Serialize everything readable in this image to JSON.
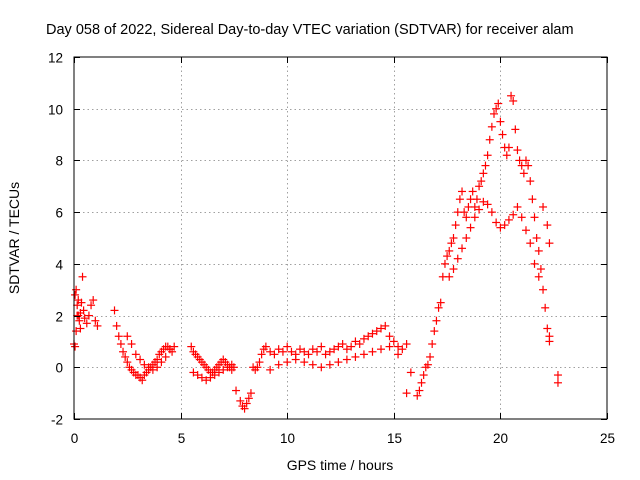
{
  "chart_data": {
    "type": "scatter",
    "title": "Day 058 of 2022, Sidereal Day-to-day VTEC variation (SDTVAR) for receiver alam",
    "xlabel": "GPS time / hours",
    "ylabel": "SDTVAR / TECUs",
    "xlim": [
      0,
      25
    ],
    "ylim": [
      -2,
      12
    ],
    "xticks": [
      0,
      5,
      10,
      15,
      20,
      25
    ],
    "xtick_labels": [
      "0",
      "5",
      "10",
      "15",
      "20",
      "25"
    ],
    "yticks": [
      -2,
      0,
      2,
      4,
      6,
      8,
      10,
      12
    ],
    "ytick_labels": [
      "-2",
      "0",
      "2",
      "4",
      "6",
      "8",
      "10",
      "12"
    ],
    "grid": true,
    "marker": "plus",
    "series": [
      {
        "name": "SDTVAR",
        "color": "#ff0000",
        "x": [
          0.0,
          0.05,
          0.1,
          0.15,
          0.2,
          0.25,
          0.3,
          0.35,
          0.4,
          0.45,
          0.5,
          0.6,
          0.7,
          0.8,
          0.9,
          1.0,
          1.1,
          0.05,
          0.1,
          0.15,
          0.2,
          0.3,
          1.9,
          2.0,
          2.1,
          2.2,
          2.3,
          2.4,
          2.5,
          2.6,
          2.7,
          2.8,
          2.9,
          3.0,
          3.1,
          3.2,
          3.3,
          3.4,
          3.5,
          3.6,
          3.7,
          3.8,
          3.9,
          4.0,
          4.1,
          4.2,
          4.3,
          4.4,
          4.5,
          4.6,
          4.7,
          2.5,
          2.7,
          2.9,
          3.1,
          3.3,
          3.5,
          3.7,
          3.9,
          4.1,
          4.3,
          4.5,
          5.5,
          5.6,
          5.7,
          5.8,
          5.9,
          6.0,
          6.1,
          6.2,
          6.3,
          6.4,
          6.5,
          6.6,
          6.7,
          6.8,
          6.9,
          7.0,
          7.1,
          7.2,
          7.3,
          7.4,
          7.5,
          5.6,
          5.8,
          6.0,
          6.2,
          6.4,
          6.6,
          6.8,
          7.0,
          7.2,
          7.4,
          7.6,
          7.8,
          7.9,
          8.0,
          8.1,
          8.2,
          8.3,
          8.4,
          8.5,
          8.6,
          8.7,
          8.8,
          8.9,
          9.0,
          9.2,
          9.4,
          9.6,
          9.8,
          10.0,
          10.2,
          10.4,
          10.6,
          10.8,
          11.0,
          11.2,
          11.4,
          11.6,
          11.8,
          12.0,
          12.2,
          12.4,
          12.6,
          12.8,
          13.0,
          13.2,
          13.4,
          13.6,
          13.8,
          14.0,
          14.2,
          14.4,
          14.6,
          14.8,
          15.0,
          15.2,
          15.4,
          15.6,
          15.8,
          9.2,
          9.6,
          10.0,
          10.4,
          10.8,
          11.2,
          11.6,
          12.0,
          12.4,
          12.8,
          13.2,
          13.6,
          14.0,
          14.4,
          14.8,
          15.2,
          15.6,
          16.1,
          16.2,
          16.3,
          16.4,
          16.5,
          16.6,
          16.7,
          16.8,
          16.9,
          17.0,
          17.1,
          17.2,
          17.3,
          17.4,
          17.5,
          17.6,
          17.7,
          17.8,
          17.9,
          18.0,
          18.1,
          18.2,
          18.3,
          18.4,
          18.5,
          18.6,
          18.7,
          18.8,
          18.9,
          19.0,
          19.1,
          19.2,
          19.3,
          19.4,
          19.5,
          19.6,
          19.7,
          19.8,
          19.9,
          20.0,
          20.1,
          20.2,
          20.3,
          20.4,
          20.5,
          20.6,
          20.7,
          20.8,
          20.9,
          21.0,
          21.1,
          21.2,
          21.3,
          21.4,
          21.5,
          21.6,
          21.7,
          21.8,
          21.9,
          22.0,
          22.1,
          22.2,
          22.3,
          17.6,
          17.8,
          18.0,
          18.2,
          18.4,
          18.6,
          18.8,
          19.0,
          19.2,
          19.4,
          19.6,
          19.8,
          20.0,
          20.2,
          20.4,
          20.6,
          20.8,
          21.0,
          21.2,
          21.4,
          21.6,
          21.8,
          22.0,
          22.2,
          22.3,
          22.3,
          22.7,
          22.7
        ],
        "y": [
          0.9,
          2.8,
          3.0,
          2.4,
          2.0,
          1.8,
          2.1,
          2.5,
          3.5,
          2.2,
          1.9,
          1.7,
          2.0,
          2.4,
          2.6,
          1.8,
          1.6,
          0.8,
          1.4,
          2.0,
          2.6,
          1.5,
          2.2,
          1.6,
          1.2,
          0.9,
          0.6,
          0.4,
          0.2,
          0.0,
          -0.1,
          -0.2,
          -0.3,
          -0.3,
          -0.4,
          -0.5,
          -0.3,
          -0.2,
          -0.1,
          0.0,
          0.1,
          0.2,
          0.3,
          0.5,
          0.6,
          0.7,
          0.8,
          0.8,
          0.7,
          0.6,
          0.8,
          1.2,
          0.9,
          0.5,
          0.3,
          0.1,
          0.0,
          -0.1,
          0.0,
          0.2,
          0.4,
          0.7,
          0.8,
          0.6,
          0.5,
          0.4,
          0.3,
          0.2,
          0.1,
          0.0,
          -0.1,
          -0.2,
          -0.2,
          -0.1,
          0.0,
          0.1,
          0.2,
          0.3,
          0.2,
          0.1,
          0.0,
          -0.1,
          0.0,
          -0.2,
          -0.3,
          -0.4,
          -0.5,
          -0.4,
          -0.3,
          -0.2,
          -0.1,
          0.0,
          0.1,
          -0.9,
          -1.3,
          -1.5,
          -1.6,
          -1.4,
          -1.2,
          -1.0,
          0.0,
          -0.1,
          0.0,
          0.2,
          0.5,
          0.7,
          0.8,
          0.6,
          0.5,
          0.7,
          0.6,
          0.8,
          0.6,
          0.5,
          0.7,
          0.6,
          0.5,
          0.7,
          0.6,
          0.8,
          0.5,
          0.6,
          0.7,
          0.8,
          0.9,
          0.7,
          0.8,
          1.0,
          0.9,
          1.1,
          1.2,
          1.3,
          1.4,
          1.5,
          1.6,
          1.2,
          1.0,
          0.8,
          0.7,
          0.9,
          -0.2,
          -0.1,
          0.1,
          0.2,
          0.3,
          0.2,
          0.1,
          0.0,
          0.1,
          0.2,
          0.3,
          0.4,
          0.5,
          0.6,
          0.7,
          0.8,
          0.5,
          -1.0,
          -1.1,
          -0.9,
          -0.6,
          -0.3,
          0.0,
          0.1,
          0.4,
          0.9,
          1.4,
          1.8,
          2.3,
          2.5,
          3.5,
          4.0,
          4.3,
          4.5,
          4.8,
          5.0,
          5.5,
          6.0,
          6.5,
          6.8,
          6.0,
          5.8,
          6.2,
          6.5,
          6.8,
          6.2,
          6.5,
          7.0,
          7.2,
          7.5,
          7.8,
          8.2,
          8.8,
          9.3,
          9.8,
          10.0,
          10.2,
          9.5,
          9.0,
          8.5,
          8.2,
          8.5,
          10.5,
          10.3,
          9.2,
          8.4,
          8.0,
          7.8,
          7.5,
          8.0,
          7.8,
          7.2,
          6.5,
          5.8,
          5.0,
          4.5,
          3.8,
          3.0,
          2.3,
          1.5,
          1.2,
          3.5,
          3.8,
          4.2,
          4.6,
          5.0,
          5.4,
          5.8,
          6.1,
          6.4,
          6.3,
          6.0,
          5.6,
          5.4,
          5.5,
          5.7,
          5.9,
          6.2,
          5.8,
          5.3,
          4.8,
          4.0,
          3.5,
          6.2,
          5.5,
          4.8,
          1.0,
          -0.3,
          -0.6
        ]
      }
    ]
  }
}
